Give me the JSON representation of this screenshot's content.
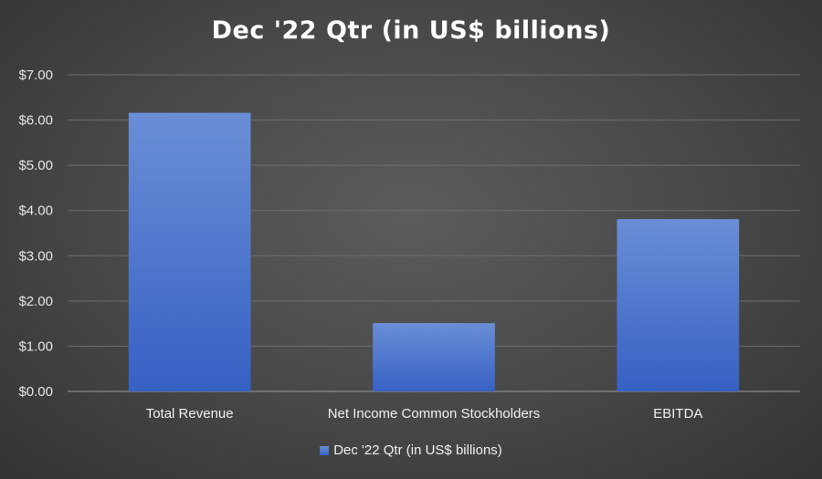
{
  "chart_data": {
    "type": "bar",
    "title": "Dec '22 Qtr (in US$ billions)",
    "categories": [
      "Total Revenue",
      "Net Income Common Stockholders",
      "EBITDA"
    ],
    "series": [
      {
        "name": "Dec '22 Qtr (in US$ billions)",
        "values": [
          6.16,
          1.51,
          3.81
        ]
      }
    ],
    "ylim": [
      0,
      7
    ],
    "yticks": [
      "$0.00",
      "$1.00",
      "$2.00",
      "$3.00",
      "$4.00",
      "$5.00",
      "$6.00",
      "$7.00"
    ],
    "grid": true,
    "legend_position": "bottom",
    "bar_color_top": "#6a8ed6",
    "bar_color_bottom": "#3661c4",
    "gridline_color": "#6e6e6e"
  }
}
